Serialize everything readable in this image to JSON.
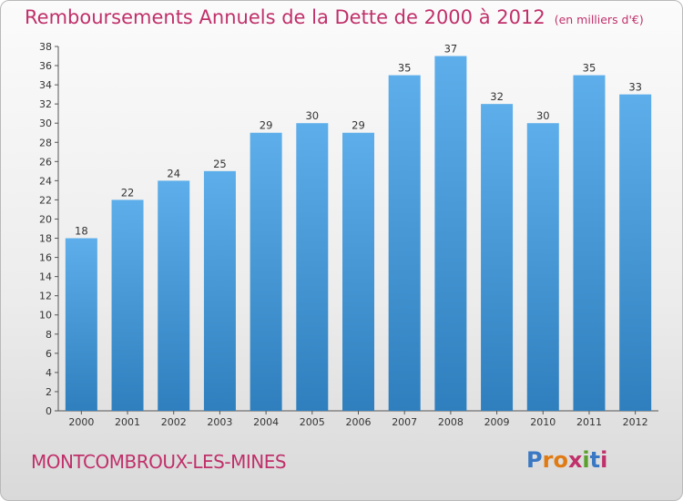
{
  "header": {
    "title": "Remboursements Annuels de la Dette de 2000 à 2012",
    "unit": "(en milliers d'€)"
  },
  "footer": {
    "commune": "MONTCOMBROUX-LES-MINES",
    "logo": "Proxiti"
  },
  "colors": {
    "title": "#c0306a",
    "bar_light": "#5daeea",
    "bar_dark": "#2f7fbe",
    "logo_letters": [
      "#3a78c4",
      "#e07a12",
      "#e07a12",
      "#c0306a",
      "#5aa02c",
      "#3a78c4",
      "#c0306a"
    ]
  },
  "chart_data": {
    "type": "bar",
    "title": "Remboursements Annuels de la Dette de 2000 à 2012",
    "subtitle": "(en milliers d'€)",
    "categories": [
      "2000",
      "2001",
      "2002",
      "2003",
      "2004",
      "2005",
      "2006",
      "2007",
      "2008",
      "2009",
      "2010",
      "2011",
      "2012"
    ],
    "values": [
      18,
      22,
      24,
      25,
      29,
      30,
      29,
      35,
      37,
      32,
      30,
      35,
      33
    ],
    "ylim": [
      0,
      38
    ],
    "ytick_step": 2,
    "grid": false,
    "data_labels": true
  }
}
